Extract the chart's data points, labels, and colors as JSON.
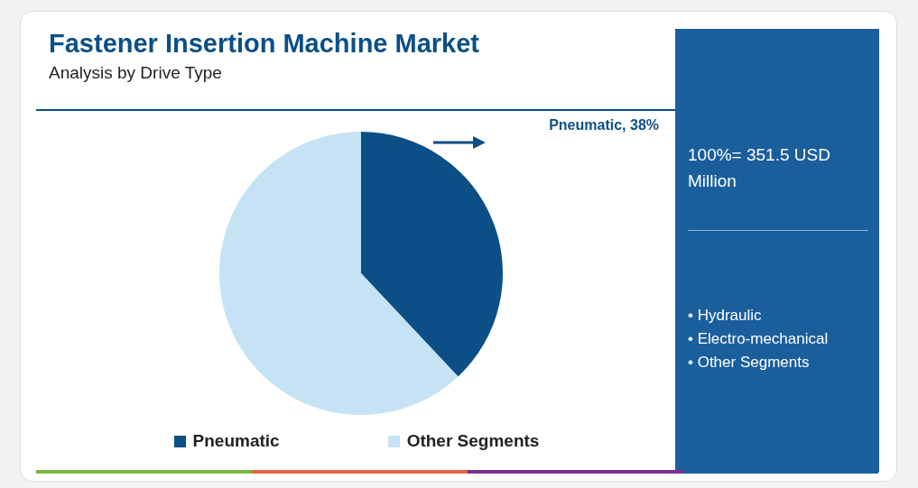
{
  "chart_data": {
    "type": "pie",
    "title": "Fastener Insertion Machine Market",
    "subtitle": "Analysis by Drive Type",
    "categories": [
      "Pneumatic",
      "Other Segments"
    ],
    "values": [
      38,
      62
    ],
    "colors": [
      "#0b4f86",
      "#c5e3f4"
    ],
    "value_labels": [
      "Pneumatic, 38%",
      null
    ],
    "legend": "bottom",
    "annotations": [
      "100%= 351.5 USD Million",
      "• Hydraulic",
      "• Electro-mechanical",
      "• Other Segments"
    ]
  }
}
